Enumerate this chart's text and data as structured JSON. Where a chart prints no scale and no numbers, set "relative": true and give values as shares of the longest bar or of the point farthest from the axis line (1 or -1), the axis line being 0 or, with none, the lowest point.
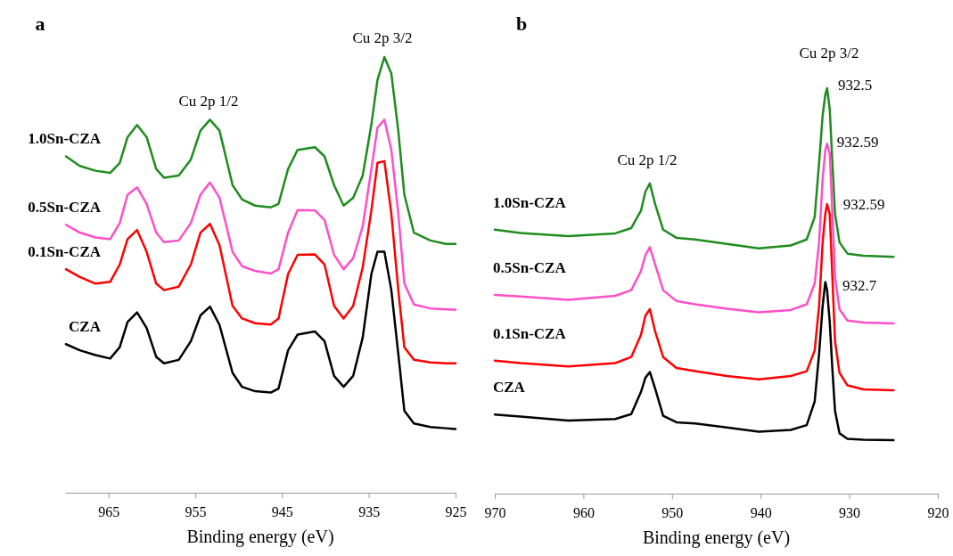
{
  "chart_data": [
    {
      "type": "line",
      "title": "a",
      "xlabel": "Binding energy (eV)",
      "relative": true,
      "xlim": [
        970,
        925
      ],
      "xticks": [
        965,
        955,
        945,
        935,
        925
      ],
      "x": [
        969.9,
        968.3,
        966.5,
        964.8,
        963.7,
        962.8,
        961.7,
        960.6,
        959.5,
        958.6,
        956.9,
        955.5,
        954.4,
        953.3,
        952.2,
        950.7,
        949.6,
        948.1,
        946.3,
        945.4,
        944.3,
        943.2,
        941.2,
        940.1,
        939.0,
        937.9,
        936.8,
        935.7,
        934.7,
        934.0,
        933.2,
        932.4,
        931.6,
        930.9,
        929.8,
        927.9,
        926.1,
        925.0
      ],
      "series": [
        {
          "name": "1.0Sn-CZA",
          "color": "#1e8c1e",
          "values": [
            0.772,
            0.75,
            0.739,
            0.734,
            0.757,
            0.816,
            0.844,
            0.816,
            0.743,
            0.723,
            0.728,
            0.765,
            0.831,
            0.856,
            0.831,
            0.706,
            0.673,
            0.659,
            0.655,
            0.663,
            0.743,
            0.787,
            0.793,
            0.772,
            0.706,
            0.659,
            0.677,
            0.728,
            0.845,
            0.947,
            1.0,
            0.962,
            0.831,
            0.684,
            0.597,
            0.579,
            0.571,
            0.571
          ]
        },
        {
          "name": "0.5Sn-CZA",
          "color": "#ff4fc8",
          "values": [
            0.615,
            0.597,
            0.586,
            0.582,
            0.619,
            0.684,
            0.701,
            0.663,
            0.597,
            0.575,
            0.579,
            0.619,
            0.684,
            0.712,
            0.677,
            0.553,
            0.52,
            0.509,
            0.503,
            0.513,
            0.597,
            0.649,
            0.648,
            0.626,
            0.546,
            0.513,
            0.538,
            0.611,
            0.743,
            0.838,
            0.856,
            0.787,
            0.641,
            0.48,
            0.432,
            0.423,
            0.421,
            0.42
          ]
        },
        {
          "name": "0.1Sn-CZA",
          "color": "#ff0000",
          "values": [
            0.513,
            0.495,
            0.48,
            0.484,
            0.524,
            0.582,
            0.603,
            0.553,
            0.48,
            0.465,
            0.473,
            0.524,
            0.597,
            0.617,
            0.568,
            0.429,
            0.4,
            0.389,
            0.386,
            0.4,
            0.502,
            0.546,
            0.547,
            0.524,
            0.429,
            0.4,
            0.429,
            0.517,
            0.648,
            0.757,
            0.761,
            0.641,
            0.465,
            0.334,
            0.305,
            0.299,
            0.297,
            0.297
          ]
        },
        {
          "name": "CZA",
          "color": "#000000",
          "values": [
            0.341,
            0.327,
            0.316,
            0.308,
            0.334,
            0.392,
            0.414,
            0.378,
            0.312,
            0.297,
            0.305,
            0.348,
            0.407,
            0.427,
            0.385,
            0.275,
            0.243,
            0.233,
            0.23,
            0.239,
            0.327,
            0.363,
            0.37,
            0.348,
            0.268,
            0.243,
            0.268,
            0.356,
            0.502,
            0.553,
            0.553,
            0.465,
            0.319,
            0.188,
            0.159,
            0.151,
            0.148,
            0.146
          ]
        }
      ],
      "annotations": [
        "Cu 2p 1/2",
        "Cu 2p 3/2"
      ]
    },
    {
      "type": "line",
      "title": "b",
      "xlabel": "Binding energy (eV)",
      "relative": true,
      "xlim": [
        970,
        920
      ],
      "xticks": [
        970,
        960,
        950,
        940,
        930,
        920
      ],
      "x": [
        970.0,
        967.1,
        961.7,
        956.4,
        954.6,
        953.5,
        953.0,
        952.5,
        951.9,
        951.0,
        949.5,
        947.4,
        943.8,
        940.2,
        936.6,
        934.8,
        933.9,
        933.4,
        933.0,
        932.7,
        932.5,
        932.2,
        931.9,
        931.6,
        931.1,
        930.2,
        928.4,
        925.0
      ],
      "series": [
        {
          "name": "1.0Sn-CZA",
          "color": "#1e8c1e",
          "values": [
            0.651,
            0.643,
            0.635,
            0.642,
            0.655,
            0.698,
            0.745,
            0.765,
            0.714,
            0.651,
            0.631,
            0.627,
            0.616,
            0.605,
            0.612,
            0.627,
            0.682,
            0.816,
            0.933,
            0.984,
            1.0,
            0.949,
            0.816,
            0.69,
            0.62,
            0.592,
            0.587,
            0.584
          ]
        },
        {
          "name": "0.5Sn-CZA",
          "color": "#ff4fc8",
          "values": [
            0.49,
            0.486,
            0.478,
            0.488,
            0.502,
            0.549,
            0.588,
            0.608,
            0.565,
            0.502,
            0.475,
            0.467,
            0.456,
            0.447,
            0.453,
            0.467,
            0.518,
            0.62,
            0.776,
            0.847,
            0.863,
            0.839,
            0.69,
            0.533,
            0.455,
            0.427,
            0.422,
            0.42
          ]
        },
        {
          "name": "0.1Sn-CZA",
          "color": "#ff0000",
          "values": [
            0.328,
            0.322,
            0.314,
            0.322,
            0.337,
            0.392,
            0.439,
            0.455,
            0.4,
            0.337,
            0.31,
            0.302,
            0.29,
            0.282,
            0.29,
            0.302,
            0.353,
            0.463,
            0.62,
            0.69,
            0.714,
            0.69,
            0.533,
            0.376,
            0.298,
            0.267,
            0.257,
            0.255
          ]
        },
        {
          "name": "CZA",
          "color": "#000000",
          "values": [
            0.195,
            0.19,
            0.18,
            0.184,
            0.196,
            0.251,
            0.286,
            0.3,
            0.259,
            0.192,
            0.176,
            0.173,
            0.163,
            0.153,
            0.157,
            0.169,
            0.227,
            0.345,
            0.463,
            0.522,
            0.502,
            0.424,
            0.306,
            0.204,
            0.149,
            0.135,
            0.133,
            0.132
          ]
        }
      ],
      "annotations": [
        "Cu 2p 1/2",
        "Cu 2p 3/2",
        "932.5",
        "932.59",
        "932.59",
        "932.7"
      ]
    }
  ]
}
